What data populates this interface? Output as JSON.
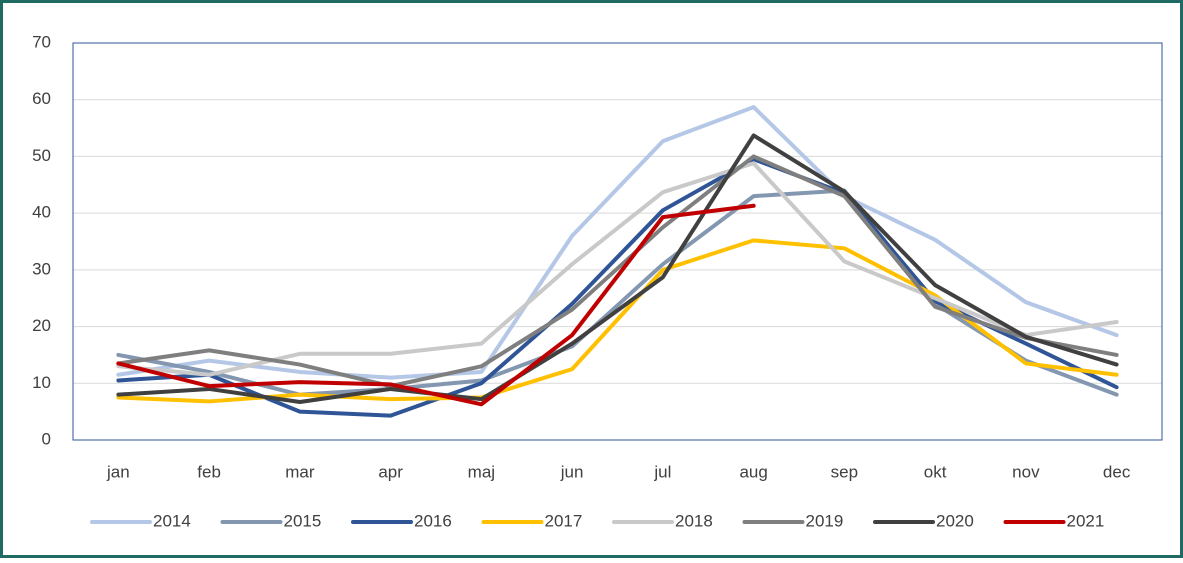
{
  "chart_data": {
    "type": "line",
    "categories": [
      "jan",
      "feb",
      "mar",
      "apr",
      "maj",
      "jun",
      "jul",
      "aug",
      "sep",
      "okt",
      "nov",
      "dec"
    ],
    "series": [
      {
        "name": "2014",
        "color": "#b4c7e7",
        "values": [
          11.5,
          14,
          12,
          11,
          12,
          36,
          52.7,
          58.7,
          43,
          35.3,
          24.3,
          18.5
        ]
      },
      {
        "name": "2015",
        "color": "#8497b0",
        "values": [
          15,
          12,
          8,
          9,
          10.5,
          16.5,
          31,
          43,
          44,
          24,
          14,
          8
        ]
      },
      {
        "name": "2016",
        "color": "#2f5597",
        "values": [
          10.5,
          11.5,
          5,
          4.3,
          10,
          24,
          40.5,
          49.5,
          43.5,
          24.5,
          17,
          9.3
        ]
      },
      {
        "name": "2017",
        "color": "#ffc000",
        "values": [
          7.5,
          6.8,
          8,
          7.2,
          7.5,
          12.5,
          30,
          35.2,
          33.8,
          25.5,
          13.5,
          11.5
        ]
      },
      {
        "name": "2018",
        "color": "#c9c9c9",
        "values": [
          13,
          11.5,
          15.2,
          15.2,
          17,
          31,
          43.7,
          48.8,
          31.5,
          25,
          18.5,
          20.8
        ]
      },
      {
        "name": "2019",
        "color": "#7f7f7f",
        "values": [
          13.5,
          15.8,
          13.3,
          9.5,
          13,
          23,
          37.5,
          50,
          43,
          23.5,
          18,
          15
        ]
      },
      {
        "name": "2020",
        "color": "#404040",
        "values": [
          8,
          9,
          6.7,
          9,
          7.2,
          17,
          28.7,
          53.7,
          43.8,
          27.3,
          18.2,
          13.3
        ]
      },
      {
        "name": "2021",
        "color": "#c00000",
        "values": [
          13.5,
          9.5,
          10.2,
          9.8,
          6.3,
          18.5,
          39.3,
          41.3,
          null,
          null,
          null,
          null
        ]
      }
    ],
    "ylim": [
      0,
      70
    ],
    "yticks": [
      0,
      10,
      20,
      30,
      40,
      50,
      60,
      70
    ],
    "grid": true,
    "legend": "bottom"
  }
}
